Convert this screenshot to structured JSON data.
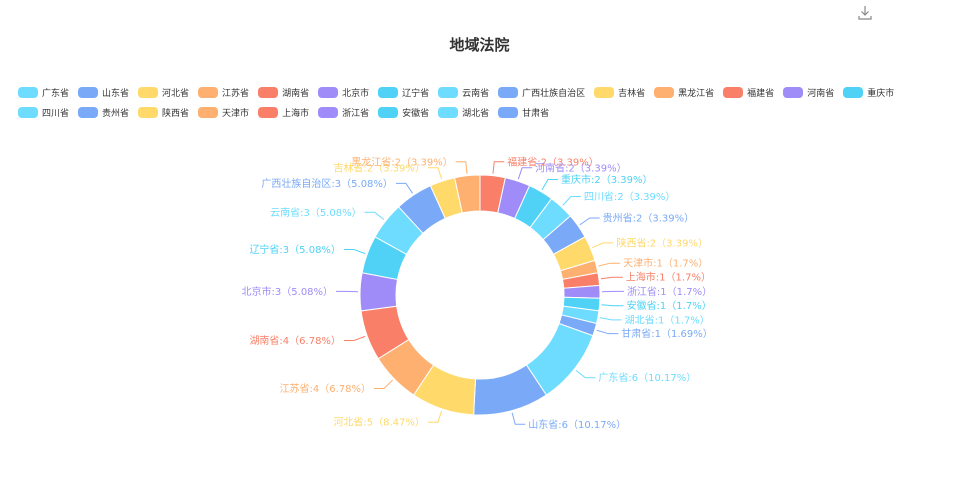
{
  "toolbar": {
    "download_icon": "download-icon"
  },
  "chart_data": {
    "type": "pie",
    "style": "donut",
    "title": "地域法院",
    "legend_position": "top",
    "colors": [
      "#6ddcff",
      "#7aaaf7",
      "#ffd96a",
      "#fdb070",
      "#fa7f68",
      "#9f8cf9"
    ],
    "slices": [
      {
        "name": "福建省",
        "value": 2,
        "percent": "3.39%",
        "color": "#fa7f68"
      },
      {
        "name": "河南省",
        "value": 2,
        "percent": "3.39%",
        "color": "#9f8cf9"
      },
      {
        "name": "重庆市",
        "value": 2,
        "percent": "3.39%",
        "color": "#4fd2f6"
      },
      {
        "name": "四川省",
        "value": 2,
        "percent": "3.39%",
        "color": "#6ddcff"
      },
      {
        "name": "贵州省",
        "value": 2,
        "percent": "3.39%",
        "color": "#7aaaf7"
      },
      {
        "name": "陕西省",
        "value": 2,
        "percent": "3.39%",
        "color": "#ffd96a"
      },
      {
        "name": "天津市",
        "value": 1,
        "percent": "1.7%",
        "color": "#fdb070"
      },
      {
        "name": "上海市",
        "value": 1,
        "percent": "1.7%",
        "color": "#fa7f68"
      },
      {
        "name": "浙江省",
        "value": 1,
        "percent": "1.7%",
        "color": "#9f8cf9"
      },
      {
        "name": "安徽省",
        "value": 1,
        "percent": "1.7%",
        "color": "#4fd2f6"
      },
      {
        "name": "湖北省",
        "value": 1,
        "percent": "1.7%",
        "color": "#6ddcff"
      },
      {
        "name": "甘肃省",
        "value": 1,
        "percent": "1.69%",
        "color": "#7aaaf7"
      },
      {
        "name": "广东省",
        "value": 6,
        "percent": "10.17%",
        "color": "#6ddcff"
      },
      {
        "name": "山东省",
        "value": 6,
        "percent": "10.17%",
        "color": "#7aaaf7"
      },
      {
        "name": "河北省",
        "value": 5,
        "percent": "8.47%",
        "color": "#ffd96a"
      },
      {
        "name": "江苏省",
        "value": 4,
        "percent": "6.78%",
        "color": "#fdb070"
      },
      {
        "name": "湖南省",
        "value": 4,
        "percent": "6.78%",
        "color": "#fa7f68"
      },
      {
        "name": "北京市",
        "value": 3,
        "percent": "5.08%",
        "color": "#9f8cf9"
      },
      {
        "name": "辽宁省",
        "value": 3,
        "percent": "5.08%",
        "color": "#4fd2f6"
      },
      {
        "name": "云南省",
        "value": 3,
        "percent": "5.08%",
        "color": "#6ddcff"
      },
      {
        "name": "广西壮族自治区",
        "value": 3,
        "percent": "5.08%",
        "color": "#7aaaf7"
      },
      {
        "name": "吉林省",
        "value": 2,
        "percent": "3.39%",
        "color": "#ffd96a"
      },
      {
        "name": "黑龙江省",
        "value": 2,
        "percent": "3.39%",
        "color": "#fdb070"
      }
    ],
    "legend": [
      {
        "name": "广东省",
        "color": "#6ddcff"
      },
      {
        "name": "山东省",
        "color": "#7aaaf7"
      },
      {
        "name": "河北省",
        "color": "#ffd96a"
      },
      {
        "name": "江苏省",
        "color": "#fdb070"
      },
      {
        "name": "湖南省",
        "color": "#fa7f68"
      },
      {
        "name": "北京市",
        "color": "#9f8cf9"
      },
      {
        "name": "辽宁省",
        "color": "#4fd2f6"
      },
      {
        "name": "云南省",
        "color": "#6ddcff"
      },
      {
        "name": "广西壮族自治区",
        "color": "#7aaaf7"
      },
      {
        "name": "吉林省",
        "color": "#ffd96a"
      },
      {
        "name": "黑龙江省",
        "color": "#fdb070"
      },
      {
        "name": "福建省",
        "color": "#fa7f68"
      },
      {
        "name": "河南省",
        "color": "#9f8cf9"
      },
      {
        "name": "重庆市",
        "color": "#4fd2f6"
      },
      {
        "name": "四川省",
        "color": "#6ddcff"
      },
      {
        "name": "贵州省",
        "color": "#7aaaf7"
      },
      {
        "name": "陕西省",
        "color": "#ffd96a"
      },
      {
        "name": "天津市",
        "color": "#fdb070"
      },
      {
        "name": "上海市",
        "color": "#fa7f68"
      },
      {
        "name": "浙江省",
        "color": "#9f8cf9"
      },
      {
        "name": "安徽省",
        "color": "#4fd2f6"
      },
      {
        "name": "湖北省",
        "color": "#6ddcff"
      },
      {
        "name": "甘肃省",
        "color": "#7aaaf7"
      }
    ]
  }
}
